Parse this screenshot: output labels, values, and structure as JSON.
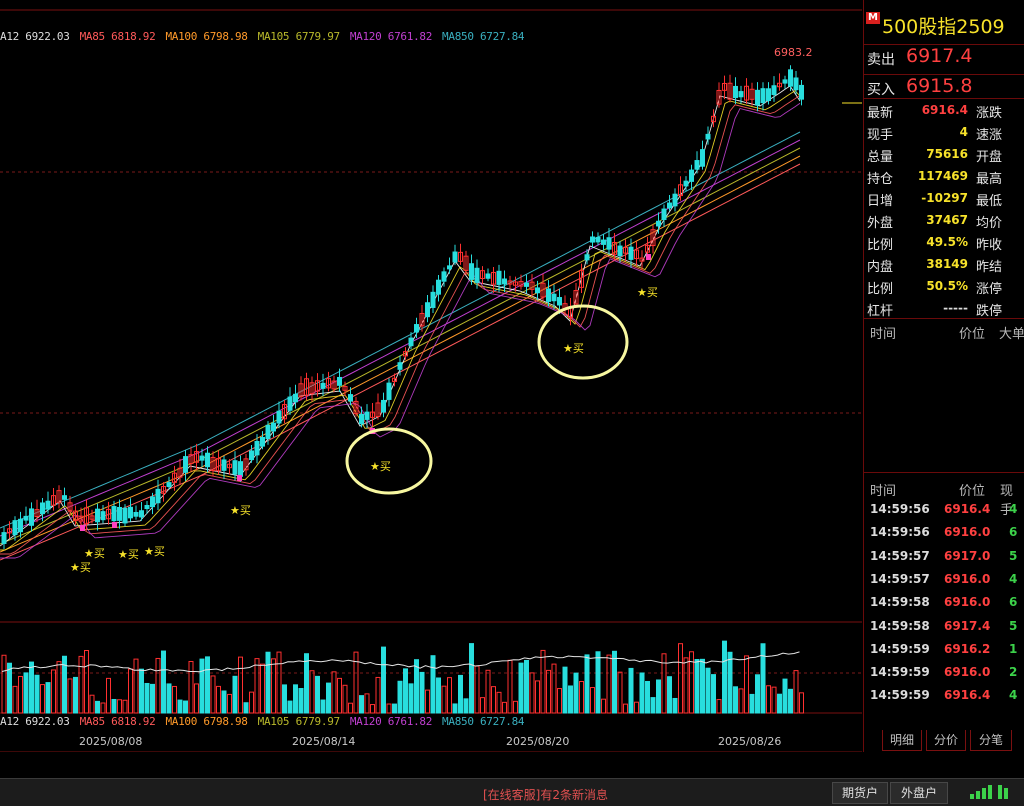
{
  "ma_legend": {
    "top": [
      {
        "text": "A12 6922.03",
        "color": "#dddddd"
      },
      {
        "text": "MA85 6818.92",
        "color": "#ff5a5a"
      },
      {
        "text": "MA100 6798.98",
        "color": "#ff9a2a"
      },
      {
        "text": "MA105 6779.97",
        "color": "#b9b92b"
      },
      {
        "text": "MA120 6761.82",
        "color": "#c040d0"
      },
      {
        "text": "MA850 6727.84",
        "color": "#3ab0c0"
      }
    ],
    "bottom": [
      {
        "text": "A12 6922.03",
        "color": "#dddddd"
      },
      {
        "text": "MA85 6818.92",
        "color": "#ff5a5a"
      },
      {
        "text": "MA100 6798.98",
        "color": "#ff9a2a"
      },
      {
        "text": "MA105 6779.97",
        "color": "#b9b92b"
      },
      {
        "text": "MA120 6761.82",
        "color": "#c040d0"
      },
      {
        "text": "MA850 6727.84",
        "color": "#3ab0c0"
      }
    ]
  },
  "chart_data": {
    "type": "candlestick",
    "high_label": "6983.2",
    "x_dates": [
      "2025/08/08",
      "2025/08/14",
      "2025/08/20",
      "2025/08/26"
    ],
    "buy_signal_label": "★买",
    "colors": {
      "up": "#ff3030",
      "down": "#28dede",
      "signal_candle": "#ff40c0",
      "annotation": "#f7f7a0"
    }
  },
  "quote": {
    "contract": "500股指2509",
    "badge": "M",
    "sell_label": "卖出",
    "sell_price": "6917.4",
    "buy_label": "买入",
    "buy_price": "6915.8"
  },
  "stats": [
    {
      "k1": "最新",
      "v1": "6916.4",
      "c1": "#ff4040",
      "k2": "涨跌"
    },
    {
      "k1": "现手",
      "v1": "4",
      "c1": "#f7e22a",
      "k2": "速涨"
    },
    {
      "k1": "总量",
      "v1": "75616",
      "c1": "#f7e22a",
      "k2": "开盘"
    },
    {
      "k1": "持仓",
      "v1": "117469",
      "c1": "#f7e22a",
      "k2": "最高"
    },
    {
      "k1": "日增",
      "v1": "-10297",
      "c1": "#f7e22a",
      "k2": "最低"
    },
    {
      "k1": "外盘",
      "v1": "37467",
      "c1": "#f7e22a",
      "k2": "均价"
    },
    {
      "k1": "比例",
      "v1": "49.5%",
      "c1": "#f7e22a",
      "k2": "昨收"
    },
    {
      "k1": "内盘",
      "v1": "38149",
      "c1": "#f7e22a",
      "k2": "昨结"
    },
    {
      "k1": "比例",
      "v1": "50.5%",
      "c1": "#f7e22a",
      "k2": "涨停"
    },
    {
      "k1": "杠杆",
      "v1": "-----",
      "c1": "#dddddd",
      "k2": "跌停"
    }
  ],
  "headers1": {
    "time": "时间",
    "price": "价位",
    "size": "大单"
  },
  "headers2": {
    "time": "时间",
    "price": "价位",
    "size": "现手"
  },
  "trades": [
    {
      "time": "14:59:56",
      "price": "6916.4",
      "qty": "4"
    },
    {
      "time": "14:59:56",
      "price": "6916.0",
      "qty": "6"
    },
    {
      "time": "14:59:57",
      "price": "6917.0",
      "qty": "5"
    },
    {
      "time": "14:59:57",
      "price": "6916.0",
      "qty": "4"
    },
    {
      "time": "14:59:58",
      "price": "6916.0",
      "qty": "6"
    },
    {
      "time": "14:59:58",
      "price": "6917.4",
      "qty": "5"
    },
    {
      "time": "14:59:59",
      "price": "6916.2",
      "qty": "1"
    },
    {
      "time": "14:59:59",
      "price": "6916.0",
      "qty": "2"
    },
    {
      "time": "14:59:59",
      "price": "6916.4",
      "qty": "4"
    }
  ],
  "tabs": [
    "明细",
    "分价",
    "分笔"
  ],
  "status": {
    "message": "[在线客服]有2条新消息",
    "btn1": "期货户",
    "btn2": "外盘户"
  }
}
